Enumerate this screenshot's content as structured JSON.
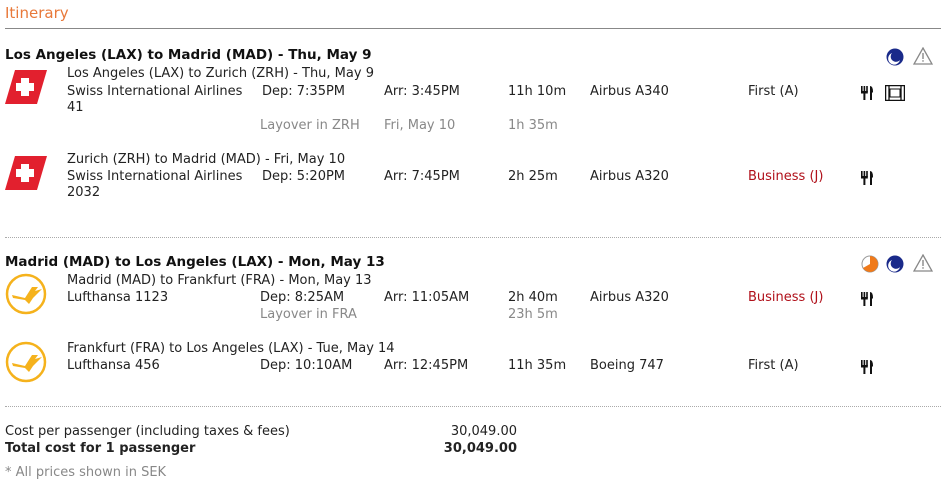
{
  "title": "Itinerary",
  "colors": {
    "title": "#e8793a",
    "business_class": "#b0101a",
    "night_icon": "#1a2a8a"
  },
  "journeys": [
    {
      "header": "Los Angeles (LAX) to Madrid (MAD) - Thu, May 9",
      "status_icons": [
        "night-icon",
        "warning-icon"
      ],
      "segments": [
        {
          "logo": "swiss-logo",
          "route": "Los Angeles (LAX) to Zurich (ZRH) - Thu, May 9",
          "airline": "Swiss International Airlines",
          "flight_no": "41",
          "dep": "Dep: 7:35PM",
          "arr": "Arr: 3:45PM",
          "duration": "11h 10m",
          "aircraft": "Airbus A340",
          "class": "First (A)",
          "class_highlight": false,
          "amenities": [
            "meal-icon",
            "film-icon"
          ],
          "layover": {
            "label": "Layover in ZRH",
            "date": "Fri, May 10",
            "duration": "1h 35m"
          }
        },
        {
          "logo": "swiss-logo",
          "route": "Zurich (ZRH) to Madrid (MAD) - Fri, May 10",
          "airline": "Swiss International Airlines",
          "flight_no": "2032",
          "dep": "Dep: 5:20PM",
          "arr": "Arr: 7:45PM",
          "duration": "2h 25m",
          "aircraft": "Airbus A320",
          "class": "Business (J)",
          "class_highlight": true,
          "amenities": [
            "meal-icon"
          ]
        }
      ]
    },
    {
      "header": "Madrid (MAD) to Los Angeles (LAX) - Mon, May 13",
      "status_icons": [
        "partial-night-icon",
        "night-icon",
        "warning-icon"
      ],
      "segments": [
        {
          "logo": "lufthansa-logo",
          "route": "Madrid (MAD) to Frankfurt (FRA) - Mon, May 13",
          "airline": "Lufthansa 1123",
          "dep": "Dep: 8:25AM",
          "arr": "Arr: 11:05AM",
          "duration": "2h 40m",
          "aircraft": "Airbus A320",
          "class": "Business (J)",
          "class_highlight": true,
          "amenities": [
            "meal-icon"
          ],
          "layover": {
            "label": "Layover in FRA",
            "duration": "23h 5m"
          }
        },
        {
          "logo": "lufthansa-logo",
          "route": "Frankfurt (FRA) to Los Angeles (LAX) - Tue, May 14",
          "airline": "Lufthansa 456",
          "dep": "Dep: 10:10AM",
          "arr": "Arr: 12:45PM",
          "duration": "11h 35m",
          "aircraft": "Boeing 747",
          "class": "First (A)",
          "class_highlight": false,
          "amenities": [
            "meal-icon"
          ]
        }
      ]
    }
  ],
  "cost": {
    "per_passenger_label": "Cost per passenger (including taxes & fees)",
    "per_passenger_value": "30,049.00",
    "total_label": "Total cost for 1 passenger",
    "total_value": "30,049.00",
    "note": "* All prices shown in SEK"
  }
}
